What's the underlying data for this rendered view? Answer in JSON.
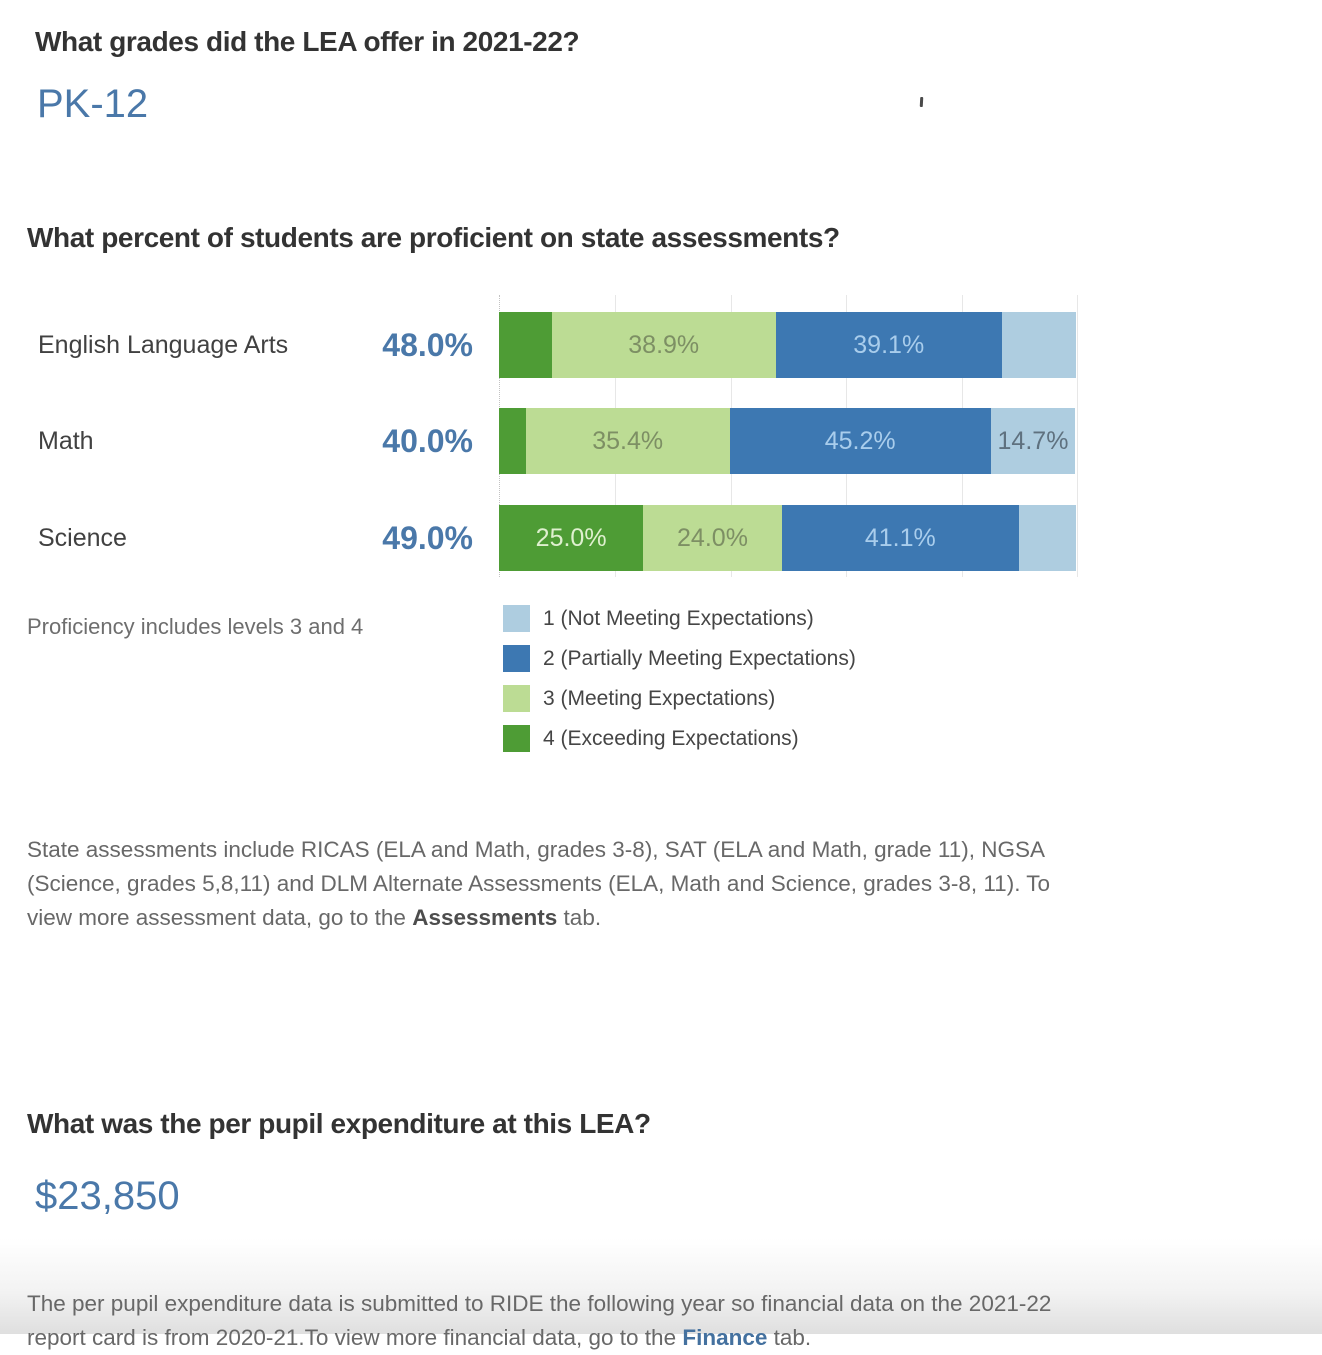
{
  "colors": {
    "heading_text": "#333333",
    "steel_blue": "#4a78a9",
    "body_gray": "#686868",
    "level1_light_blue": "#aecde0",
    "level2_blue": "#3d78b2",
    "level3_light_green": "#bcdc94",
    "level4_green": "#4e9c35"
  },
  "grades_section": {
    "question": "What grades did the LEA offer in 2021-22?",
    "answer": "PK-12"
  },
  "chart_data": {
    "type": "bar",
    "subtype": "horizontal-stacked",
    "title": "What percent of students are proficient on state assessments?",
    "categories": [
      "English Language Arts",
      "Math",
      "Science"
    ],
    "category_totals": [
      {
        "label": "48.0%",
        "value": 48.0
      },
      {
        "label": "40.0%",
        "value": 40.0
      },
      {
        "label": "49.0%",
        "value": 49.0
      }
    ],
    "xlim": [
      0,
      100
    ],
    "gridline_step_pct": 20,
    "grid": "on",
    "legend_position": "below-right",
    "series": [
      {
        "name": "4 (Exceeding Expectations)",
        "color": "#4e9c35",
        "values": [
          9.1,
          4.6,
          25.0
        ],
        "bar_labels": [
          "",
          "",
          "25.0%"
        ]
      },
      {
        "name": "3 (Meeting Expectations)",
        "color": "#bcdc94",
        "values": [
          38.9,
          35.4,
          24.0
        ],
        "bar_labels": [
          "38.9%",
          "35.4%",
          "24.0%"
        ]
      },
      {
        "name": "2 (Partially Meeting Expectations)",
        "color": "#3d78b2",
        "values": [
          39.1,
          45.2,
          41.1
        ],
        "bar_labels": [
          "39.1%",
          "45.2%",
          "41.1%"
        ]
      },
      {
        "name": "1 (Not Meeting Expectations)",
        "color": "#aecde0",
        "values": [
          12.9,
          14.7,
          9.9
        ],
        "bar_labels": [
          "",
          "14.7%",
          ""
        ]
      }
    ],
    "legend": {
      "items": [
        {
          "label": "1 (Not Meeting Expectations)",
          "color": "#aecde0"
        },
        {
          "label": "2 (Partially Meeting Expectations)",
          "color": "#3d78b2"
        },
        {
          "label": "3 (Meeting Expectations)",
          "color": "#bcdc94"
        },
        {
          "label": "4 (Exceeding Expectations)",
          "color": "#4e9c35"
        }
      ]
    },
    "note": "Proficiency includes levels 3 and 4"
  },
  "assessment_section": {
    "question": "What percent of students are proficient on state assessments?",
    "proficiency_note": "Proficiency includes levels 3 and 4",
    "footnote_parts": [
      "State assessments include RICAS (ELA and Math, grades 3-8), SAT (ELA and Math, grade 11), NGSA (Science, grades 5,8,11) and DLM Alternate Assessments (ELA, Math and Science, grades 3-8, 11). To view more assessment data, go to the ",
      "Assessments",
      " tab."
    ]
  },
  "expenditure_section": {
    "question": "What was the per pupil expenditure at this LEA?",
    "value": "$23,850",
    "footnote_parts": [
      "The per pupil expenditure data is submitted to RIDE the following year so financial data on the 2021-22 report card is from 2020-21.To view more financial data, go to the ",
      "Finance",
      " tab."
    ]
  }
}
